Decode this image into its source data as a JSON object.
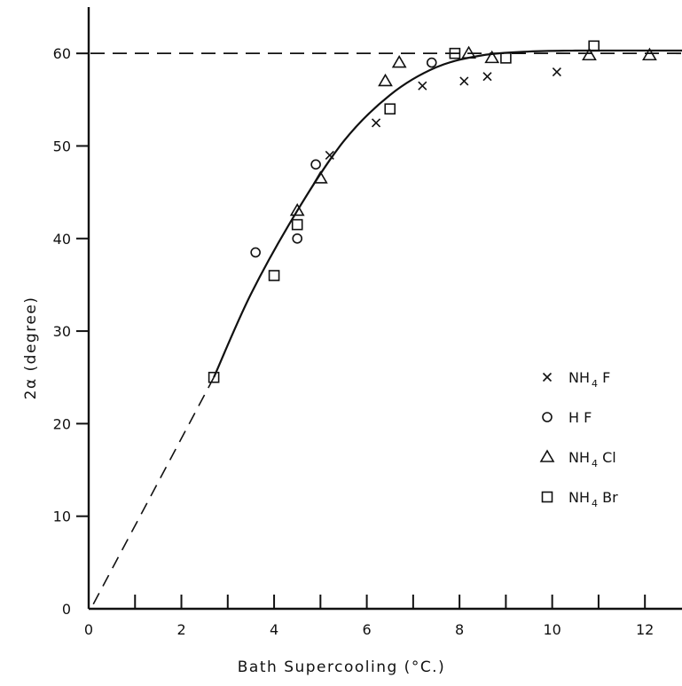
{
  "chart_data": {
    "type": "scatter",
    "title": "",
    "xlabel": "Bath Supercooling (°C.)",
    "ylabel": "2α (degree)",
    "xlim": [
      0,
      12.8
    ],
    "ylim": [
      0,
      65
    ],
    "x_ticks": [
      0,
      2,
      4,
      6,
      8,
      10,
      12
    ],
    "y_ticks": [
      0,
      10,
      20,
      30,
      40,
      50,
      60
    ],
    "x_minor_step": 1,
    "grid": false,
    "legend": "right",
    "reference_line": {
      "y": 60,
      "style": "dashed"
    },
    "fit_curve": {
      "solid": [
        [
          2.7,
          25
        ],
        [
          3.5,
          34
        ],
        [
          4.5,
          43
        ],
        [
          5.5,
          50.5
        ],
        [
          6.5,
          55.5
        ],
        [
          7.5,
          58.5
        ],
        [
          8.5,
          59.8
        ],
        [
          9.5,
          60.2
        ],
        [
          10.5,
          60.3
        ],
        [
          12.8,
          60.3
        ]
      ],
      "dashed_extrapolation": [
        [
          0.1,
          0.5
        ],
        [
          2.7,
          25
        ]
      ]
    },
    "series": [
      {
        "name": "NH4 F",
        "legend_main": "NH",
        "legend_sub": "4",
        "legend_rest": " F",
        "marker": "x",
        "points": [
          [
            5.2,
            49
          ],
          [
            6.2,
            52.5
          ],
          [
            7.2,
            56.5
          ],
          [
            8.1,
            57
          ],
          [
            8.6,
            57.5
          ],
          [
            10.1,
            58
          ]
        ]
      },
      {
        "name": "H F",
        "legend_main": "H F",
        "legend_sub": "",
        "legend_rest": "",
        "marker": "circle",
        "points": [
          [
            3.6,
            38.5
          ],
          [
            4.5,
            40
          ],
          [
            4.9,
            48
          ],
          [
            7.4,
            59
          ]
        ]
      },
      {
        "name": "NH4 Cl",
        "legend_main": "NH",
        "legend_sub": "4",
        "legend_rest": " Cl",
        "marker": "triangle",
        "points": [
          [
            4.5,
            43
          ],
          [
            5.0,
            46.5
          ],
          [
            6.4,
            57
          ],
          [
            6.7,
            59
          ],
          [
            8.2,
            60
          ],
          [
            8.7,
            59.5
          ],
          [
            10.8,
            59.8
          ],
          [
            12.1,
            59.8
          ]
        ]
      },
      {
        "name": "NH4 Br",
        "legend_main": "NH",
        "legend_sub": "4",
        "legend_rest": " Br",
        "marker": "square",
        "points": [
          [
            2.7,
            25
          ],
          [
            4.0,
            36
          ],
          [
            4.5,
            41.5
          ],
          [
            6.5,
            54
          ],
          [
            7.9,
            60
          ],
          [
            9.0,
            59.5
          ],
          [
            10.9,
            60.8
          ]
        ]
      }
    ]
  }
}
